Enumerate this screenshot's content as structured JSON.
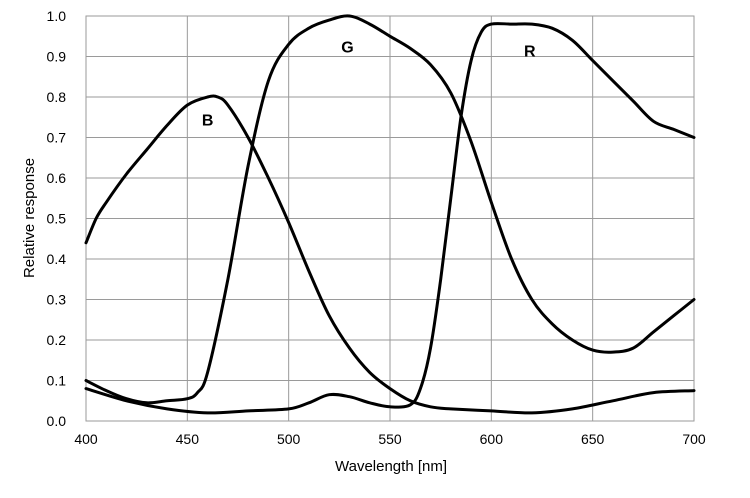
{
  "chart_data": {
    "type": "line",
    "title": "",
    "xlabel": "Wavelength [nm]",
    "ylabel": "Relative response",
    "xlim": [
      400,
      700
    ],
    "ylim": [
      0,
      1.0
    ],
    "x_ticks": [
      "400",
      "450",
      "500",
      "550",
      "600",
      "650",
      "700"
    ],
    "y_ticks": [
      "0.0",
      "0.1",
      "0.2",
      "0.3",
      "0.4",
      "0.5",
      "0.6",
      "0.7",
      "0.8",
      "0.9",
      "1.0"
    ],
    "grid": true,
    "series": [
      {
        "name": "B",
        "x": [
          400,
          405,
          410,
          420,
          430,
          440,
          450,
          460,
          465,
          470,
          480,
          490,
          500,
          510,
          520,
          530,
          540,
          550,
          560,
          570,
          580,
          600,
          620,
          640,
          660,
          680,
          700
        ],
        "values": [
          0.44,
          0.5,
          0.54,
          0.61,
          0.67,
          0.73,
          0.78,
          0.8,
          0.8,
          0.78,
          0.7,
          0.6,
          0.49,
          0.37,
          0.26,
          0.18,
          0.12,
          0.08,
          0.05,
          0.035,
          0.03,
          0.025,
          0.02,
          0.03,
          0.05,
          0.07,
          0.075
        ]
      },
      {
        "name": "G",
        "x": [
          400,
          410,
          420,
          430,
          440,
          450,
          455,
          460,
          470,
          480,
          490,
          500,
          510,
          520,
          530,
          540,
          550,
          560,
          570,
          580,
          590,
          600,
          610,
          620,
          630,
          640,
          650,
          660,
          670,
          680,
          690,
          700
        ],
        "values": [
          0.1,
          0.075,
          0.055,
          0.045,
          0.05,
          0.055,
          0.07,
          0.12,
          0.35,
          0.63,
          0.84,
          0.93,
          0.97,
          0.99,
          1.0,
          0.98,
          0.95,
          0.92,
          0.88,
          0.81,
          0.69,
          0.54,
          0.4,
          0.3,
          0.24,
          0.2,
          0.175,
          0.17,
          0.18,
          0.22,
          0.26,
          0.3
        ]
      },
      {
        "name": "R",
        "x": [
          400,
          420,
          440,
          460,
          480,
          500,
          510,
          520,
          530,
          540,
          550,
          560,
          565,
          570,
          575,
          580,
          585,
          590,
          595,
          600,
          610,
          620,
          630,
          640,
          650,
          660,
          670,
          680,
          690,
          700
        ],
        "values": [
          0.08,
          0.05,
          0.03,
          0.02,
          0.025,
          0.03,
          0.045,
          0.065,
          0.06,
          0.045,
          0.035,
          0.04,
          0.08,
          0.18,
          0.35,
          0.55,
          0.75,
          0.89,
          0.96,
          0.98,
          0.98,
          0.98,
          0.97,
          0.94,
          0.89,
          0.84,
          0.79,
          0.74,
          0.72,
          0.7
        ]
      }
    ],
    "annotations": [
      {
        "text": "B",
        "x": 460,
        "y": 0.73
      },
      {
        "text": "G",
        "x": 529,
        "y": 0.91
      },
      {
        "text": "R",
        "x": 619,
        "y": 0.9
      }
    ]
  }
}
